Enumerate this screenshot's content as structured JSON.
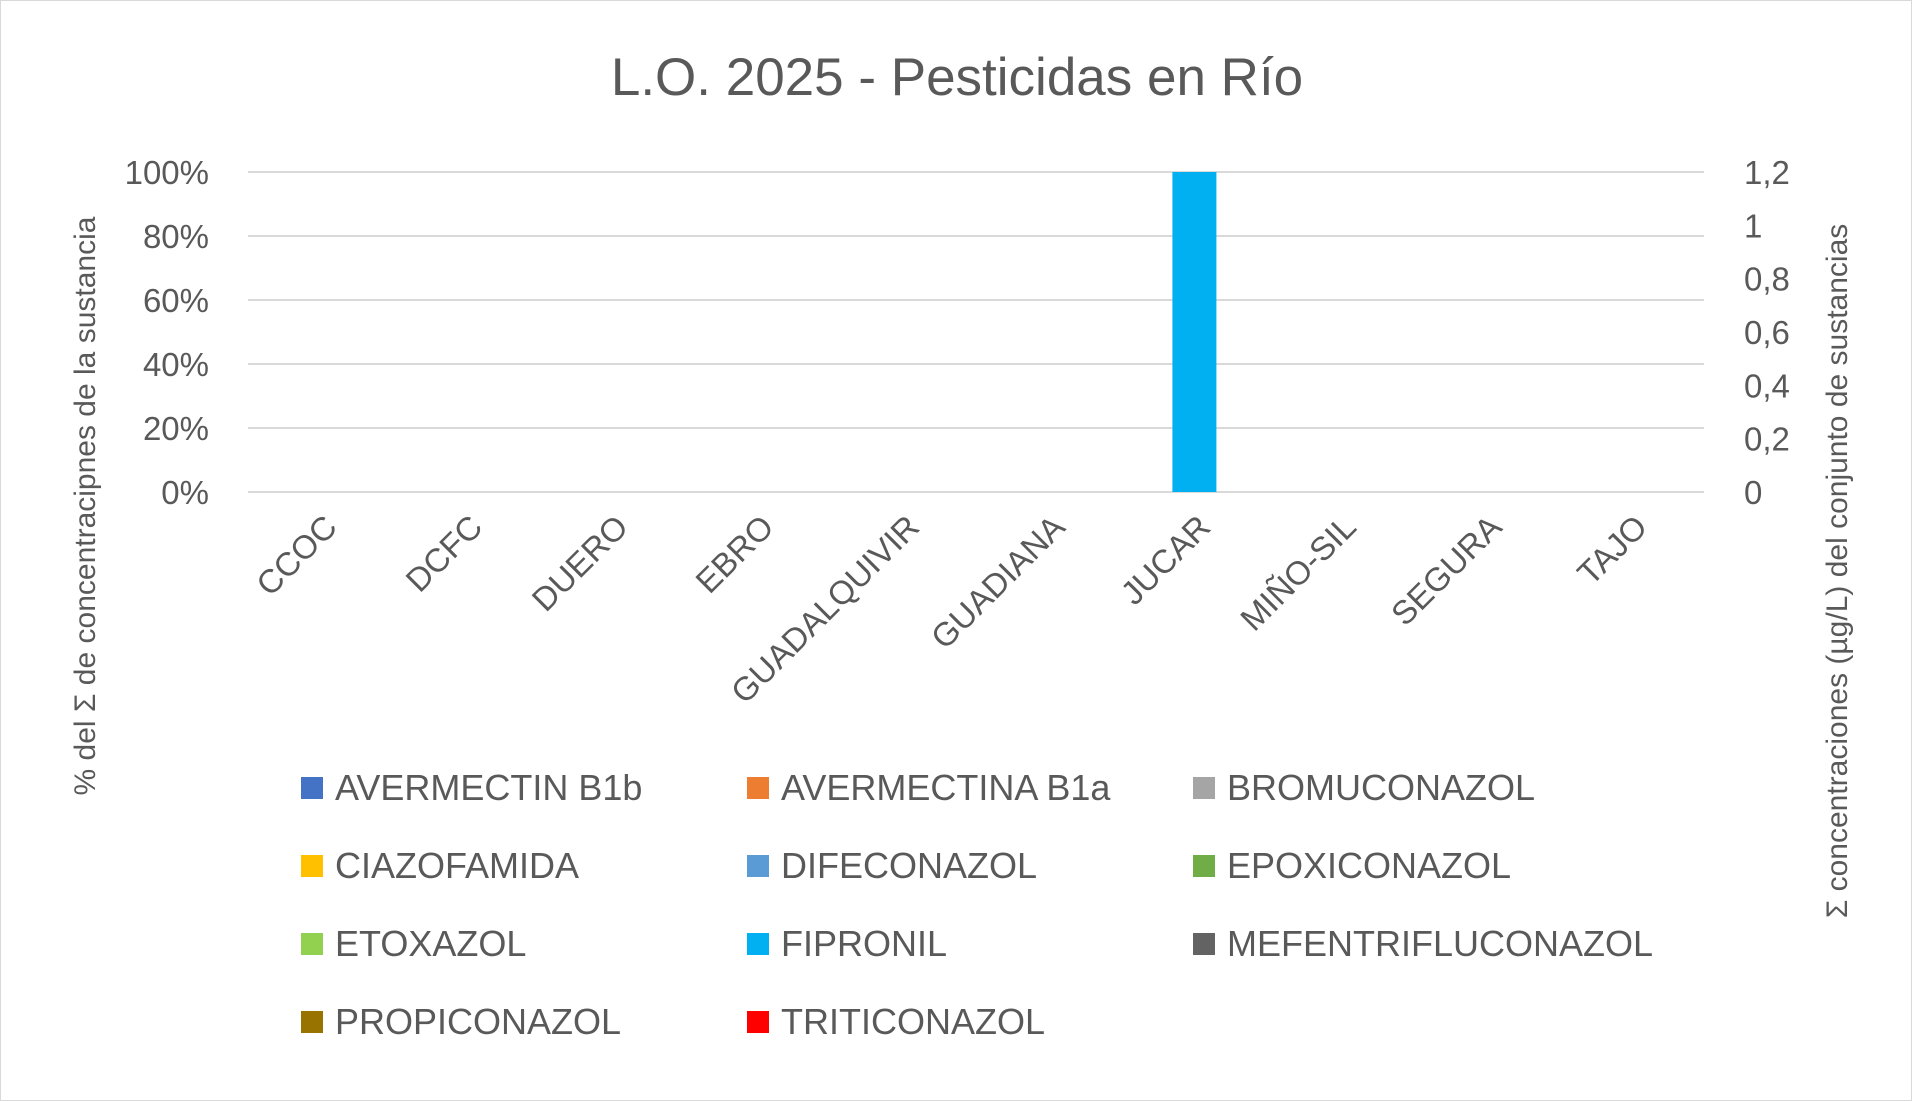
{
  "chart_data": {
    "type": "bar",
    "stacked": true,
    "title": "L.O. 2025 - Pesticidas en Río",
    "ylabel_left": "% del Σ de concentracipnes de la sustancia",
    "ylabel_right": "Σ concentraciones (µg/L) del conjunto de sustancias",
    "categories": [
      "CCOC",
      "DCFC",
      "DUERO",
      "EBRO",
      "GUADALQUIVIR",
      "GUADIANA",
      "JUCAR",
      "MIÑO-SIL",
      "SEGURA",
      "TAJO"
    ],
    "ylim_left": [
      0,
      100
    ],
    "ylim_right": [
      0,
      1.2
    ],
    "yticks_left": [
      "0%",
      "20%",
      "40%",
      "60%",
      "80%",
      "100%"
    ],
    "yticks_right": [
      "0",
      "0,2",
      "0,4",
      "0,6",
      "0,8",
      "1",
      "1,2"
    ],
    "grid": true,
    "legend_position": "bottom",
    "series": [
      {
        "name": "AVERMECTIN B1b",
        "color": "#4472c4",
        "values": [
          0,
          0,
          0,
          0,
          0,
          0,
          0,
          0,
          0,
          0
        ]
      },
      {
        "name": "AVERMECTINA B1a",
        "color": "#ed7d31",
        "values": [
          0,
          0,
          0,
          0,
          0,
          0,
          0,
          0,
          0,
          0
        ]
      },
      {
        "name": "BROMUCONAZOL",
        "color": "#a5a5a5",
        "values": [
          0,
          0,
          0,
          0,
          0,
          0,
          0,
          0,
          0,
          0
        ]
      },
      {
        "name": "CIAZOFAMIDA",
        "color": "#ffc000",
        "values": [
          0,
          0,
          0,
          0,
          0,
          0,
          0,
          0,
          0,
          0
        ]
      },
      {
        "name": "DIFECONAZOL",
        "color": "#5b9bd5",
        "values": [
          0,
          0,
          0,
          0,
          0,
          0,
          0,
          0,
          0,
          0
        ]
      },
      {
        "name": "EPOXICONAZOL",
        "color": "#70ad47",
        "values": [
          0,
          0,
          0,
          0,
          0,
          0,
          0,
          0,
          0,
          0
        ]
      },
      {
        "name": "ETOXAZOL",
        "color": "#92d050",
        "values": [
          0,
          0,
          0,
          0,
          0,
          0,
          0,
          0,
          0,
          0
        ]
      },
      {
        "name": "FIPRONIL",
        "color": "#00b0f0",
        "values": [
          0,
          0,
          0,
          0,
          0,
          0,
          100,
          0,
          0,
          0
        ]
      },
      {
        "name": "MEFENTRIFLUCONAZOL",
        "color": "#636363",
        "values": [
          0,
          0,
          0,
          0,
          0,
          0,
          0,
          0,
          0,
          0
        ]
      },
      {
        "name": "PROPICONAZOL",
        "color": "#997300",
        "values": [
          0,
          0,
          0,
          0,
          0,
          0,
          0,
          0,
          0,
          0
        ]
      },
      {
        "name": "TRITICONAZOL",
        "color": "#ff0000",
        "values": [
          0,
          0,
          0,
          0,
          0,
          0,
          0,
          0,
          0,
          0
        ]
      }
    ]
  }
}
